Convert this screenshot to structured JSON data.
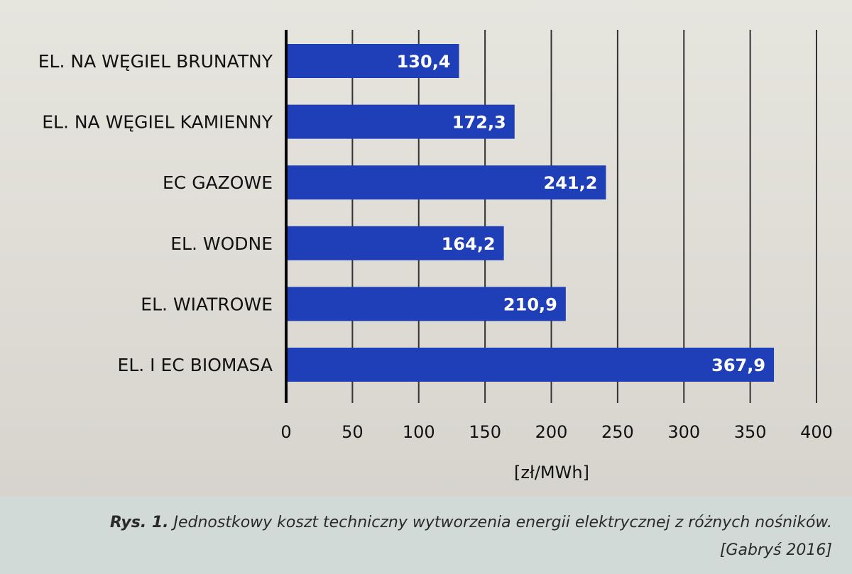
{
  "chart_data": {
    "type": "bar",
    "orientation": "horizontal",
    "categories": [
      "EL. NA WĘGIEL BRUNATNY",
      "EL. NA WĘGIEL KAMIENNY",
      "EC GAZOWE",
      "EL. WODNE",
      "EL. WIATROWE",
      "EL. I EC BIOMASA"
    ],
    "values": [
      130.4,
      172.3,
      241.2,
      164.2,
      210.9,
      367.9
    ],
    "value_labels": [
      "130,4",
      "172,3",
      "241,2",
      "164,2",
      "210,9",
      "367,9"
    ],
    "xlabel": "[zł/MWh]",
    "xlim": [
      0,
      400
    ],
    "xticks": [
      0,
      50,
      100,
      150,
      200,
      250,
      300,
      350,
      400
    ],
    "grid": "vertical",
    "bar_color": "#1f3fb8",
    "grid_color": "#333333"
  },
  "caption": {
    "figure_number": "Rys. 1.",
    "text": "Jednostkowy koszt techniczny wytworzenia energii elektrycznej z różnych nośników.",
    "source": "[Gabryś 2016]"
  }
}
